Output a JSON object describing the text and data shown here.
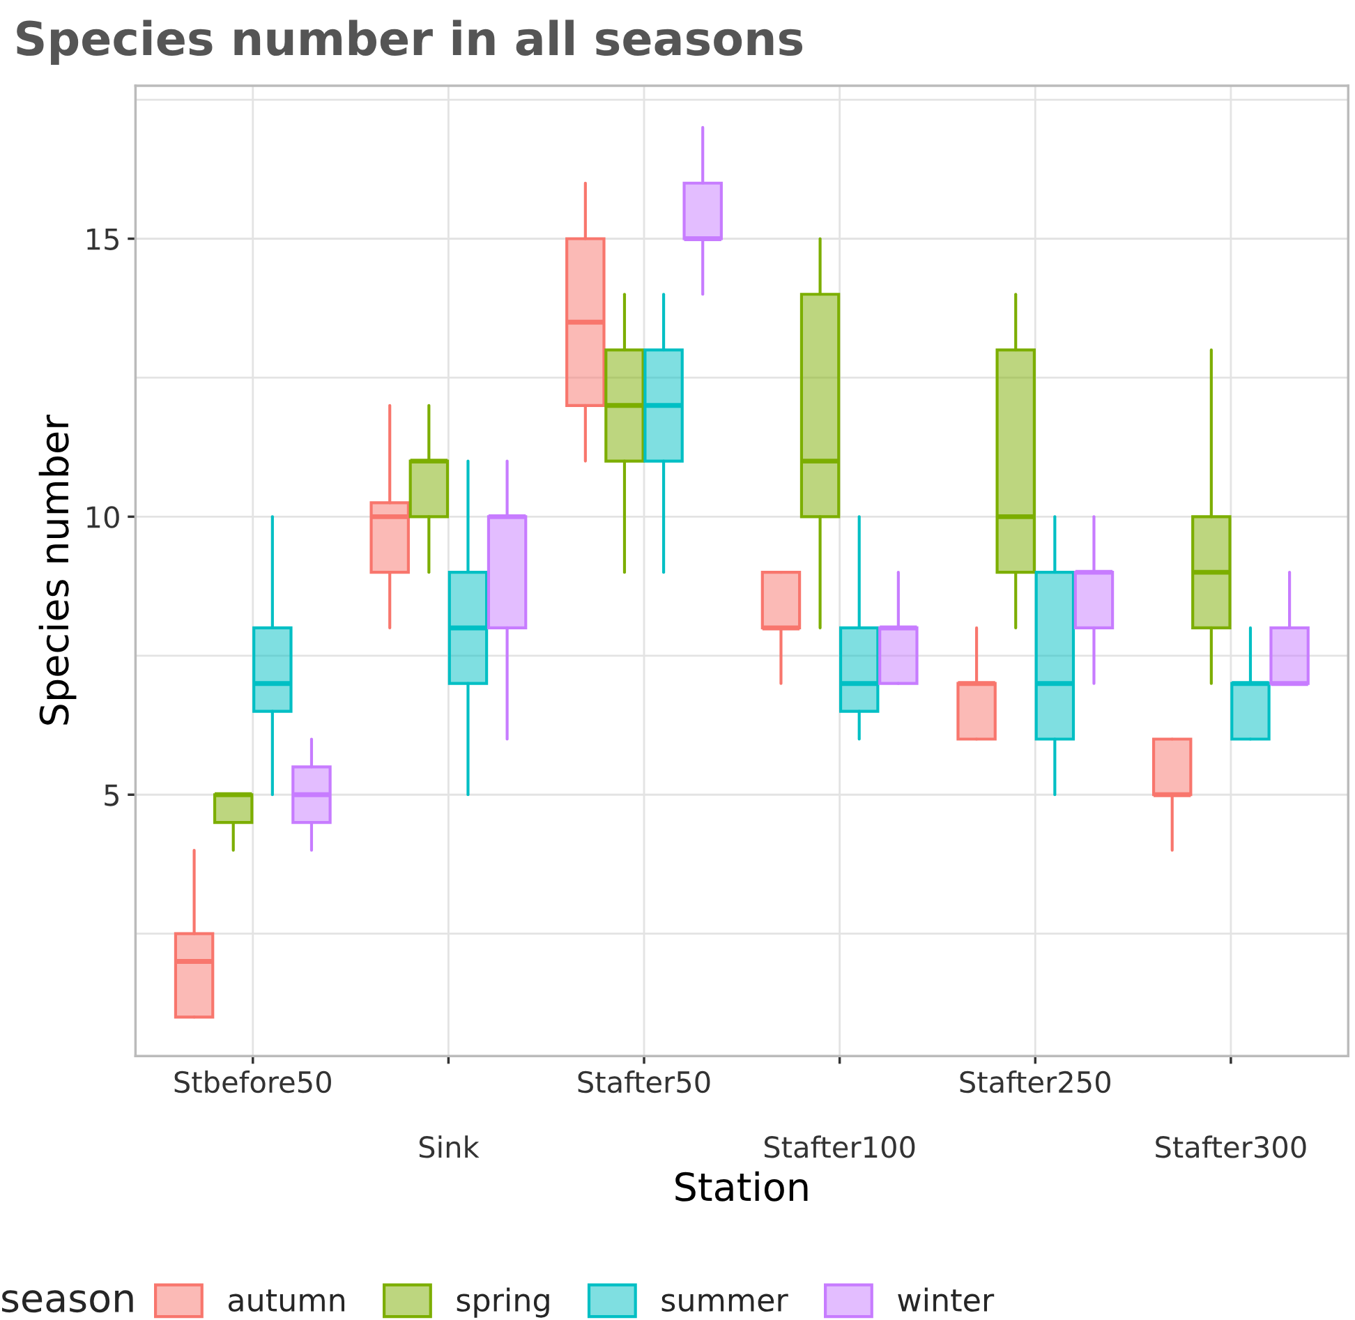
{
  "chart_data": {
    "type": "box",
    "title": "Species number in all seasons",
    "xlabel": "Station",
    "ylabel": "Species number",
    "legend_title": "season",
    "legend": "bottom",
    "grid": true,
    "categories": [
      "Stbefore50",
      "Sink",
      "Stafter50",
      "Stafter100",
      "Stafter250",
      "Stafter300"
    ],
    "ylim": [
      0.3,
      17.75
    ],
    "yticks": [
      {
        "value": 2.5,
        "label": null
      },
      5,
      {
        "value": 7.5,
        "label": null
      },
      10,
      {
        "value": 12.5,
        "label": null
      },
      15,
      {
        "value": 17.5,
        "label": null
      }
    ],
    "series": [
      {
        "name": "autumn",
        "color": "#f8766d",
        "boxes": [
          {
            "low": 1,
            "q1": 1,
            "median": 2,
            "q3": 2.5,
            "high": 4
          },
          {
            "low": 8,
            "q1": 9,
            "median": 10,
            "q3": 10.25,
            "high": 12
          },
          {
            "low": 11,
            "q1": 12,
            "median": 13.5,
            "q3": 15,
            "high": 16
          },
          {
            "low": 7,
            "q1": 8,
            "median": 8,
            "q3": 9,
            "high": 9
          },
          {
            "low": 6,
            "q1": 6,
            "median": 7,
            "q3": 7,
            "high": 8
          },
          {
            "low": 4,
            "q1": 5,
            "median": 5,
            "q3": 6,
            "high": 6
          }
        ]
      },
      {
        "name": "spring",
        "color": "#7cae00",
        "boxes": [
          {
            "low": 4,
            "q1": 4.5,
            "median": 5,
            "q3": 5,
            "high": 5
          },
          {
            "low": 9,
            "q1": 10,
            "median": 11,
            "q3": 11,
            "high": 12
          },
          {
            "low": 9,
            "q1": 11,
            "median": 12,
            "q3": 13,
            "high": 14
          },
          {
            "low": 8,
            "q1": 10,
            "median": 11,
            "q3": 14,
            "high": 15
          },
          {
            "low": 8,
            "q1": 9,
            "median": 10,
            "q3": 13,
            "high": 14
          },
          {
            "low": 7,
            "q1": 8,
            "median": 9,
            "q3": 10,
            "high": 13
          }
        ]
      },
      {
        "name": "summer",
        "color": "#00bfc4",
        "boxes": [
          {
            "low": 5,
            "q1": 6.5,
            "median": 7,
            "q3": 8,
            "high": 10
          },
          {
            "low": 5,
            "q1": 7,
            "median": 8,
            "q3": 9,
            "high": 11
          },
          {
            "low": 9,
            "q1": 11,
            "median": 12,
            "q3": 13,
            "high": 14
          },
          {
            "low": 6,
            "q1": 6.5,
            "median": 7,
            "q3": 8,
            "high": 10
          },
          {
            "low": 5,
            "q1": 6,
            "median": 7,
            "q3": 9,
            "high": 10
          },
          {
            "low": 6,
            "q1": 6,
            "median": 7,
            "q3": 7,
            "high": 8
          }
        ]
      },
      {
        "name": "winter",
        "color": "#c77cff",
        "boxes": [
          {
            "low": 4,
            "q1": 4.5,
            "median": 5,
            "q3": 5.5,
            "high": 6
          },
          {
            "low": 6,
            "q1": 8,
            "median": 10,
            "q3": 10,
            "high": 11
          },
          {
            "low": 14,
            "q1": 15,
            "median": 15,
            "q3": 16,
            "high": 17
          },
          {
            "low": 7,
            "q1": 7,
            "median": 8,
            "q3": 8,
            "high": 9
          },
          {
            "low": 7,
            "q1": 8,
            "median": 9,
            "q3": 9,
            "high": 10
          },
          {
            "low": 7,
            "q1": 7,
            "median": 7,
            "q3": 8,
            "high": 9
          }
        ]
      }
    ]
  }
}
